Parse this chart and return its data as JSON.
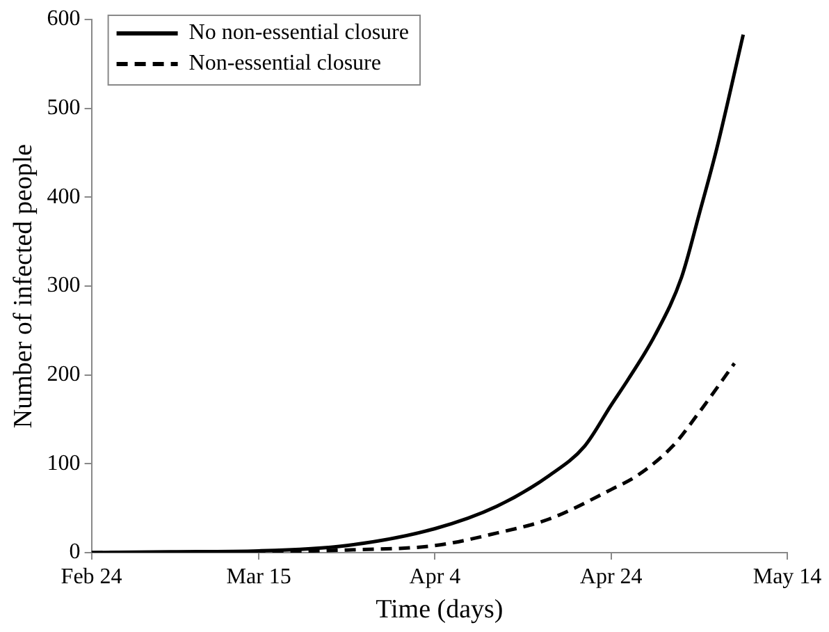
{
  "chart_data": {
    "type": "line",
    "xlabel": "Time (days)",
    "ylabel": "Number of infected people",
    "xlim": [
      "--02-24",
      "--05-14"
    ],
    "xticks": [
      {
        "value": "--02-24",
        "label": "Feb 24"
      },
      {
        "value": "--03-15",
        "label": "Mar 15"
      },
      {
        "value": "--04-04",
        "label": "Apr 4"
      },
      {
        "value": "--04-24",
        "label": "Apr 24"
      },
      {
        "value": "--05-14",
        "label": "May 14"
      }
    ],
    "ylim": [
      0,
      600
    ],
    "yticks": [
      0,
      100,
      200,
      300,
      400,
      500,
      600
    ],
    "grid": false,
    "legend": "top left",
    "marker": "none",
    "series": [
      {
        "name": "No non-essential closure",
        "color": "#000000",
        "line_style": "solid",
        "x": [
          "--02-24",
          "--03-05",
          "--03-15",
          "--03-25",
          "--04-04",
          "--04-11",
          "--04-17",
          "--04-21",
          "--04-24",
          "--04-26",
          "--04-29",
          "--05-02",
          "--05-04",
          "--05-06",
          "--05-09"
        ],
        "values": [
          0,
          1,
          2,
          8,
          27,
          52,
          87,
          120,
          166,
          196,
          245,
          310,
          381,
          455,
          583
        ]
      },
      {
        "name": "Non-essential closure",
        "color": "#000000",
        "line_style": "dashed",
        "x": [
          "--02-24",
          "--03-15",
          "--03-25",
          "--04-04",
          "--04-11",
          "--04-17",
          "--04-24",
          "--04-27",
          "--05-01",
          "--05-04",
          "--05-08"
        ],
        "values": [
          0,
          1,
          3,
          8,
          22,
          38,
          71,
          87,
          120,
          158,
          213
        ]
      }
    ]
  }
}
